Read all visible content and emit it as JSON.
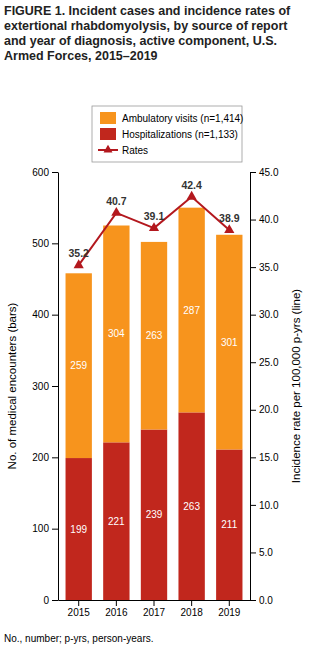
{
  "chart_data": {
    "type": "bar",
    "title": "FIGURE 1. Incident cases and incidence rates of extertional rhabdomyolysis, by source of report and year of diagnosis, active component, U.S. Armed Forces, 2015–2019",
    "categories": [
      "2015",
      "2016",
      "2017",
      "2018",
      "2019"
    ],
    "series": [
      {
        "name": "Ambulatory visits (n=1,414)",
        "color": "#f7941d",
        "values": [
          259,
          304,
          263,
          287,
          301
        ]
      },
      {
        "name": "Hospitalizations (n=1,133)",
        "color": "#c1271d",
        "values": [
          199,
          221,
          239,
          263,
          211
        ]
      },
      {
        "name": "Rates",
        "color": "#b3181e",
        "type": "line",
        "axis": "y2",
        "marker": "triangle",
        "values": [
          35.2,
          40.7,
          39.1,
          42.4,
          38.9
        ]
      }
    ],
    "stacked": true,
    "data_labels": true,
    "grid": false,
    "legend": "top",
    "ylabel": "No. of medical encounters (bars)",
    "y2label": "Incidence rate per 100,000 p-yrs (line)",
    "ylim": [
      0,
      600
    ],
    "yticks": [
      0,
      100,
      200,
      300,
      400,
      500,
      600
    ],
    "y2lim": [
      0,
      45
    ],
    "y2ticks": [
      {
        "value": 0,
        "label": "0.0"
      },
      {
        "value": 5,
        "label": "5.0"
      },
      {
        "value": 10,
        "label": "10.0"
      },
      {
        "value": 15,
        "label": "15.0"
      },
      {
        "value": 20,
        "label": "20.0"
      },
      {
        "value": 25,
        "label": "25.0"
      },
      {
        "value": 30,
        "label": "30.0"
      },
      {
        "value": 35,
        "label": "35.0"
      },
      {
        "value": 40,
        "label": "40.0"
      },
      {
        "value": 45,
        "label": "45.0"
      }
    ],
    "annotations": [
      "No., number; p-yrs, person-years."
    ]
  }
}
